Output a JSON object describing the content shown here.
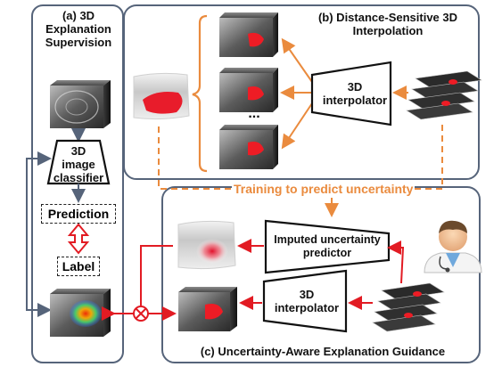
{
  "panel_a": {
    "title_line1": "(a) 3D",
    "title_line2": "Explanation",
    "title_line3": "Supervision"
  },
  "panel_b": {
    "title_line1": "(b) Distance-Sensitive 3D",
    "title_line2": "Interpolation"
  },
  "panel_c": {
    "title": "(c) Uncertainty-Aware Explanation Guidance"
  },
  "classifier": {
    "line1": "3D",
    "line2": "image",
    "line3": "classifier"
  },
  "prediction_label": "Prediction",
  "label_label": "Label",
  "interpolator_b": {
    "line1": "3D",
    "line2": "interpolator"
  },
  "interpolator_c": {
    "line1": "3D",
    "line2": "interpolator"
  },
  "uncertainty_predictor": {
    "line1": "Imputed uncertainty",
    "line2": "predictor"
  },
  "training_text": "Training to predict uncertainty",
  "ellipsis": "...",
  "colors": {
    "frame": "#56647a",
    "orange": "#ea8b3e",
    "red": "#e21b23",
    "dark": "#333b47"
  }
}
